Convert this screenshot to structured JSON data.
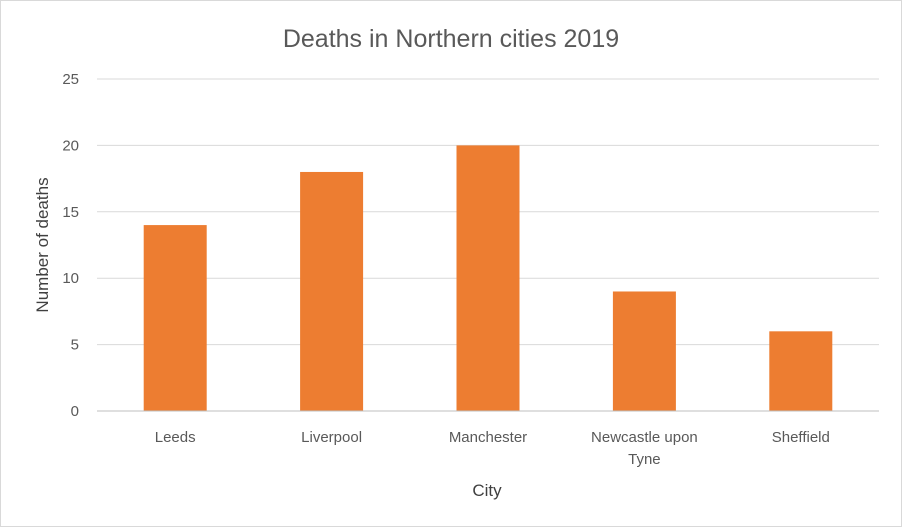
{
  "chart_data": {
    "type": "bar",
    "title": "Deaths in Northern cities 2019",
    "xlabel": "City",
    "ylabel": "Number of deaths",
    "categories": [
      "Leeds",
      "Liverpool",
      "Manchester",
      "Newcastle upon Tyne",
      "Sheffield"
    ],
    "category_lines": [
      [
        "Leeds"
      ],
      [
        "Liverpool"
      ],
      [
        "Manchester"
      ],
      [
        "Newcastle upon",
        "Tyne"
      ],
      [
        "Sheffield"
      ]
    ],
    "values": [
      14,
      18,
      20,
      9,
      6
    ],
    "ylim": [
      0,
      25
    ],
    "yticks": [
      "0",
      "5",
      "10",
      "15",
      "20",
      "25"
    ],
    "grid": true,
    "legend": "none",
    "bar_color": "#ED7D31"
  }
}
